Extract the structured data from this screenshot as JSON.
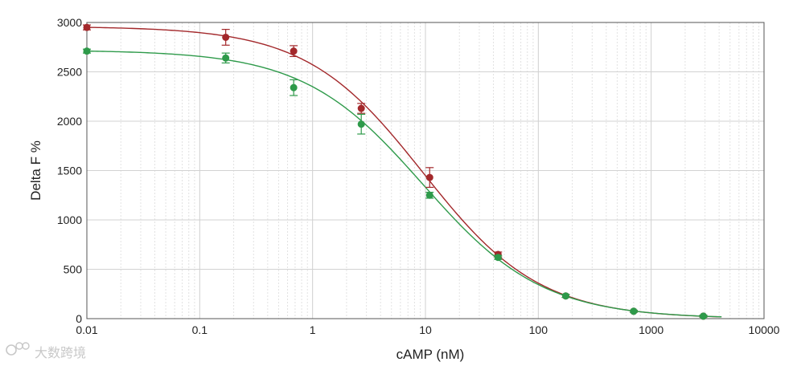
{
  "chart_data": {
    "type": "scatter",
    "xlabel": "cAMP (nM)",
    "ylabel": "Delta F %",
    "xscale": "log",
    "xlim": [
      0.01,
      10000
    ],
    "ylim": [
      0,
      3000
    ],
    "x_ticks": [
      "0.01",
      "0.1",
      "1",
      "10",
      "100",
      "1000",
      "10000"
    ],
    "y_ticks": [
      "0",
      "500",
      "1000",
      "1500",
      "2000",
      "2500",
      "3000"
    ],
    "grid": true,
    "legend": "none",
    "series": [
      {
        "color": "#a3282b",
        "points": [
          {
            "x": 0.01,
            "y": 2950,
            "err": 25
          },
          {
            "x": 0.17,
            "y": 2850,
            "err": 80
          },
          {
            "x": 0.68,
            "y": 2710,
            "err": 55
          },
          {
            "x": 2.7,
            "y": 2130,
            "err": 50
          },
          {
            "x": 10.9,
            "y": 1430,
            "err": 100
          },
          {
            "x": 44,
            "y": 650,
            "err": 25
          },
          {
            "x": 175,
            "y": 230,
            "err": 15
          },
          {
            "x": 700,
            "y": 75,
            "err": 10
          },
          {
            "x": 2900,
            "y": 25,
            "err": 10
          }
        ],
        "fit": {
          "top": 2960,
          "bottom": 0,
          "ec50": 9.5,
          "hill": 0.84
        }
      },
      {
        "color": "#2e9a4a",
        "points": [
          {
            "x": 0.01,
            "y": 2710,
            "err": 20
          },
          {
            "x": 0.17,
            "y": 2640,
            "err": 50
          },
          {
            "x": 0.68,
            "y": 2340,
            "err": 80
          },
          {
            "x": 2.7,
            "y": 1970,
            "err": 100
          },
          {
            "x": 10.9,
            "y": 1250,
            "err": 30
          },
          {
            "x": 44,
            "y": 620,
            "err": 20
          },
          {
            "x": 175,
            "y": 230,
            "err": 15
          },
          {
            "x": 700,
            "y": 75,
            "err": 10
          },
          {
            "x": 2900,
            "y": 25,
            "err": 10
          }
        ],
        "fit": {
          "top": 2720,
          "bottom": 0,
          "ec50": 9.5,
          "hill": 0.82
        }
      }
    ]
  },
  "watermark": {
    "text": "大数跨境",
    "icon": "logo-icon"
  }
}
